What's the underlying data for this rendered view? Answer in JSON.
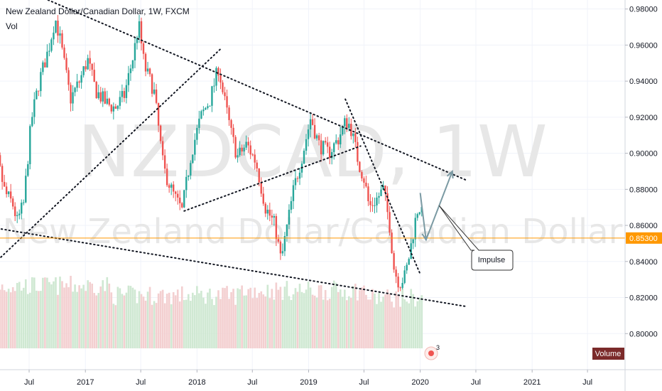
{
  "header": {
    "title": "New Zealand Dollar/Canadian Dollar, 1W, FXCM",
    "vol_label": "Vol"
  },
  "watermark": {
    "symbol": "NZDCAD, 1W",
    "name": "New Zealand Dollar/Canadian Dollar"
  },
  "badges": {
    "price": "0.85300",
    "volume": "Volume",
    "alert_count": "3"
  },
  "annotation": {
    "text": "Impulse"
  },
  "colors": {
    "up": "#26a69a",
    "down": "#ef5350",
    "vol_up": "#cfe8d2",
    "vol_down": "#f3cfd0",
    "price_line": "#ff9800",
    "arrow": "#7b9aa3",
    "volume_badge": "#7b2a2a"
  },
  "chart_data": {
    "type": "candlestick",
    "title": "New Zealand Dollar/Canadian Dollar, 1W, FXCM",
    "symbol": "NZDCAD",
    "timeframe": "1W",
    "xlabel": "",
    "ylabel": "",
    "x_ticks": [
      "Jul",
      "2017",
      "Jul",
      "2018",
      "Jul",
      "2019",
      "Jul",
      "2020",
      "Jul",
      "2021",
      "Jul"
    ],
    "y_ticks": [
      "0.98000",
      "0.96000",
      "0.94000",
      "0.92000",
      "0.90000",
      "0.88000",
      "0.86000",
      "0.84000",
      "0.82000",
      "0.80000"
    ],
    "ylim": [
      0.78,
      0.985
    ],
    "time_range": [
      "2016-02",
      "2021-10"
    ],
    "last_price": 0.853,
    "series": [
      {
        "name": "NZDCAD",
        "anchors": [
          [
            "2016-02-01",
            0.912
          ],
          [
            "2016-03-15",
            0.905
          ],
          [
            "2016-04-20",
            0.878
          ],
          [
            "2016-05-15",
            0.872
          ],
          [
            "2016-05-30",
            0.862
          ],
          [
            "2016-06-20",
            0.872
          ],
          [
            "2016-07-15",
            0.918
          ],
          [
            "2016-08-10",
            0.94
          ],
          [
            "2016-09-10",
            0.958
          ],
          [
            "2016-10-01",
            0.975
          ],
          [
            "2016-10-15",
            0.965
          ],
          [
            "2016-11-20",
            0.93
          ],
          [
            "2016-12-20",
            0.94
          ],
          [
            "2017-01-15",
            0.952
          ],
          [
            "2017-02-10",
            0.935
          ],
          [
            "2017-03-15",
            0.928
          ],
          [
            "2017-04-15",
            0.925
          ],
          [
            "2017-05-15",
            0.932
          ],
          [
            "2017-06-15",
            0.955
          ],
          [
            "2017-07-01",
            0.972
          ],
          [
            "2017-07-20",
            0.948
          ],
          [
            "2017-08-20",
            0.935
          ],
          [
            "2017-09-20",
            0.892
          ],
          [
            "2017-10-20",
            0.878
          ],
          [
            "2017-11-20",
            0.868
          ],
          [
            "2017-12-20",
            0.9
          ],
          [
            "2018-01-20",
            0.92
          ],
          [
            "2018-02-20",
            0.93
          ],
          [
            "2018-03-20",
            0.948
          ],
          [
            "2018-04-01",
            0.935
          ],
          [
            "2018-05-01",
            0.91
          ],
          [
            "2018-05-20",
            0.898
          ],
          [
            "2018-06-20",
            0.905
          ],
          [
            "2018-07-20",
            0.895
          ],
          [
            "2018-08-20",
            0.87
          ],
          [
            "2018-09-20",
            0.86
          ],
          [
            "2018-10-10",
            0.84
          ],
          [
            "2018-10-25",
            0.855
          ],
          [
            "2018-11-20",
            0.88
          ],
          [
            "2018-12-20",
            0.9
          ],
          [
            "2019-01-15",
            0.92
          ],
          [
            "2019-02-10",
            0.905
          ],
          [
            "2019-03-15",
            0.9
          ],
          [
            "2019-04-15",
            0.908
          ],
          [
            "2019-05-10",
            0.918
          ],
          [
            "2019-05-25",
            0.915
          ],
          [
            "2019-06-20",
            0.895
          ],
          [
            "2019-07-10",
            0.885
          ],
          [
            "2019-07-25",
            0.87
          ],
          [
            "2019-08-20",
            0.875
          ],
          [
            "2019-09-10",
            0.88
          ],
          [
            "2019-09-30",
            0.86
          ],
          [
            "2019-10-15",
            0.835
          ],
          [
            "2019-11-01",
            0.828
          ],
          [
            "2019-11-20",
            0.832
          ],
          [
            "2019-12-05",
            0.845
          ],
          [
            "2019-12-20",
            0.86
          ],
          [
            "2020-01-03",
            0.872
          ],
          [
            "2020-01-12",
            0.866
          ]
        ]
      }
    ],
    "volume": {
      "name": "Volume",
      "relative_levels": [
        0.65,
        0.45,
        0.55,
        0.4,
        0.5
      ]
    },
    "trendlines": [
      {
        "name": "upper-resistance",
        "points": [
          [
            "2016-09-01",
            0.985
          ],
          [
            "2020-06-01",
            0.885
          ]
        ]
      },
      {
        "name": "lower-support",
        "points": [
          [
            "2016-04-01",
            0.858
          ],
          [
            "2020-06-01",
            0.815
          ]
        ]
      },
      {
        "name": "rising-support-2016",
        "points": [
          [
            "2015-12-01",
            0.823
          ],
          [
            "2018-03-20",
            0.958
          ]
        ]
      },
      {
        "name": "rising-support-2018",
        "points": [
          [
            "2017-11-20",
            0.868
          ],
          [
            "2019-06-20",
            0.904
          ]
        ]
      },
      {
        "name": "falling-wedge-edge",
        "points": [
          [
            "2019-05-01",
            0.93
          ],
          [
            "2020-01-01",
            0.833
          ]
        ]
      }
    ],
    "projection": {
      "label": "Impulse",
      "path": [
        [
          "2020-01-01",
          0.878
        ],
        [
          "2020-01-20",
          0.852
        ],
        [
          "2020-04-15",
          0.89
        ]
      ]
    },
    "horizontal_line": {
      "value": 0.853
    }
  }
}
